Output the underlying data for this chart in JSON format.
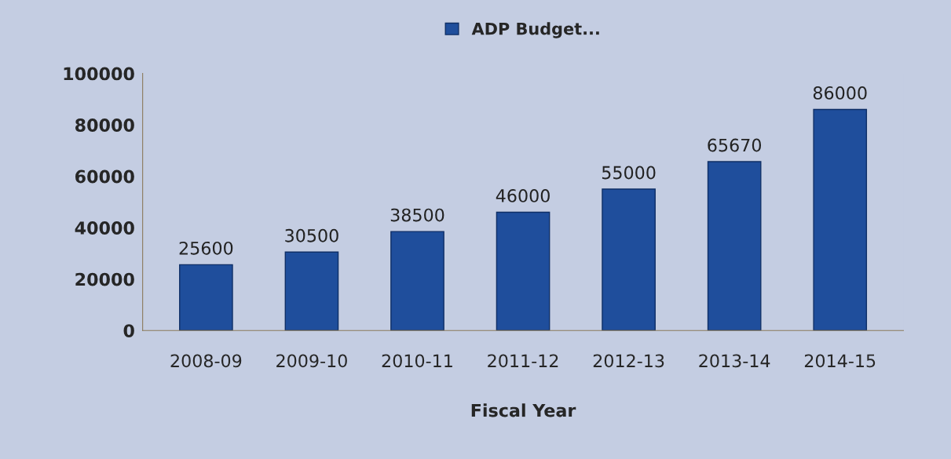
{
  "chart_data": {
    "type": "bar",
    "xlabel": "Fiscal Year",
    "categories": [
      "2008-09",
      "2009-10",
      "2010-11",
      "2011-12",
      "2012-13",
      "2013-14",
      "2014-15"
    ],
    "series": [
      {
        "name": "ADP Budget...",
        "color": "#1f4e9c",
        "values": [
          25600,
          30500,
          38500,
          46000,
          55000,
          65670,
          86000
        ]
      }
    ],
    "ylim": [
      0,
      100000
    ],
    "yticks": [
      0,
      20000,
      40000,
      60000,
      80000,
      100000
    ],
    "data_labels": true,
    "legend": "top",
    "grid": false
  }
}
